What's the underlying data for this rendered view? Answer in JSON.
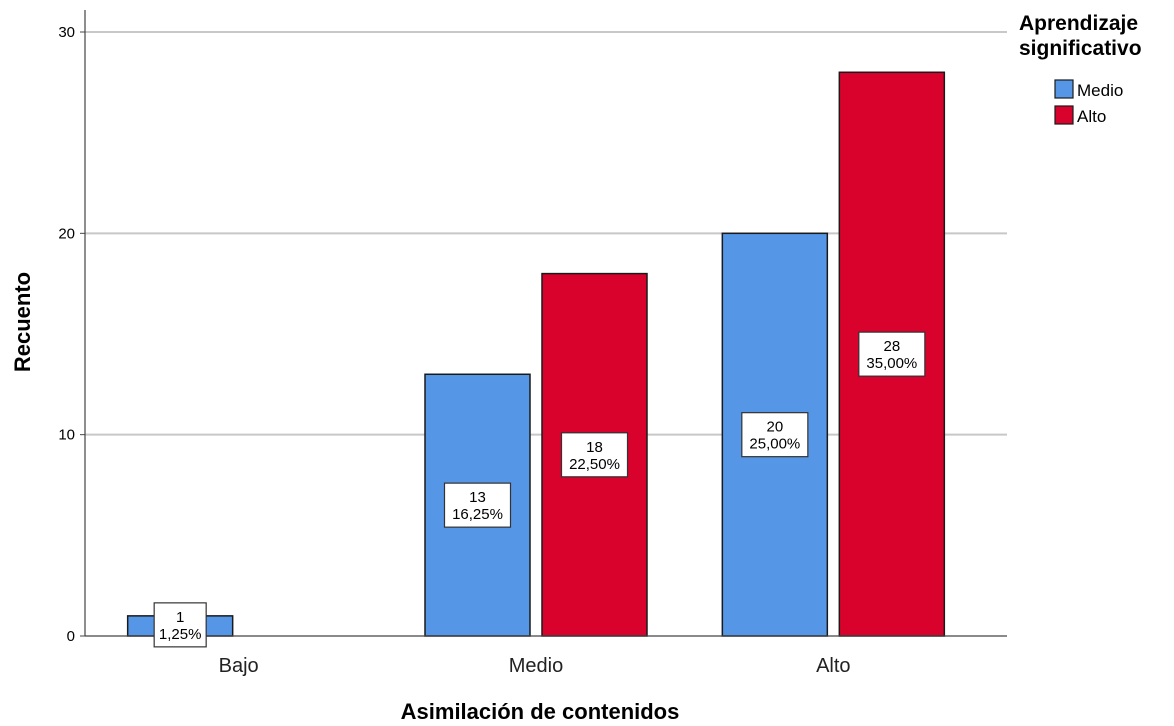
{
  "chart_data": {
    "type": "bar",
    "xlabel": "Asimilación de contenidos",
    "ylabel": "Recuento",
    "ylim": [
      0,
      30
    ],
    "yticks": [
      "0",
      "10",
      "20",
      "30"
    ],
    "grid": true,
    "categories": [
      "Bajo",
      "Medio",
      "Alto"
    ],
    "legend_title_lines": [
      "Aprendizaje",
      "significativo"
    ],
    "legend_position": "top-right",
    "series": [
      {
        "name": "Medio",
        "color": "#5596e6",
        "values": [
          1,
          13,
          20
        ],
        "labels": [
          [
            "1",
            "1,25%"
          ],
          [
            "13",
            "16,25%"
          ],
          [
            "20",
            "25,00%"
          ]
        ]
      },
      {
        "name": "Alto",
        "color": "#d8022c",
        "values": [
          null,
          18,
          28
        ],
        "labels": [
          null,
          [
            "18",
            "22,50%"
          ],
          [
            "28",
            "35,00%"
          ]
        ]
      }
    ]
  }
}
